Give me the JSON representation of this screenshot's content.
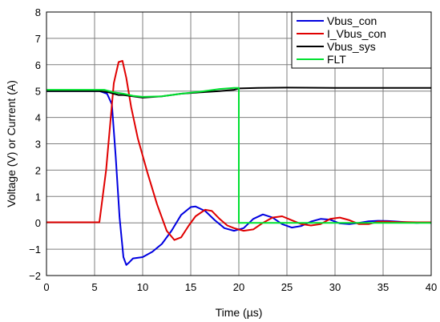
{
  "chart_data": {
    "type": "line",
    "xlabel": "Time (µs)",
    "ylabel": "Voltage (V) or Current (A)",
    "xlim": [
      0,
      40
    ],
    "ylim": [
      -2,
      8
    ],
    "xticks": [
      0,
      5,
      10,
      15,
      20,
      25,
      30,
      35,
      40
    ],
    "yticks": [
      -2,
      -1,
      0,
      1,
      2,
      3,
      4,
      5,
      6,
      7,
      8
    ],
    "xtick_labels": [
      "0",
      "5",
      "10",
      "15",
      "20",
      "25",
      "30",
      "35",
      "40"
    ],
    "ytick_labels": [
      "−2",
      "−1",
      "0",
      "1",
      "2",
      "3",
      "4",
      "5",
      "6",
      "7",
      "8"
    ],
    "grid": true,
    "legend_position": "top-right",
    "series": [
      {
        "name": "Vbus_con",
        "color": "#0000e0",
        "x": [
          0,
          5.5,
          6.3,
          6.8,
          7.2,
          7.6,
          8.0,
          8.3,
          8.6,
          9.0,
          10.0,
          11.0,
          12.0,
          13.0,
          14.0,
          15.0,
          15.5,
          16.5,
          17.5,
          18.5,
          19.5,
          20.5,
          21.5,
          22.5,
          23.5,
          24.5,
          25.5,
          26.5,
          27.5,
          28.5,
          29.5,
          30.5,
          31.5,
          32.5,
          33.5,
          34.5,
          35.5,
          36.5,
          37.5,
          38.5,
          39.5,
          40
        ],
        "y": [
          5.0,
          5.0,
          4.9,
          4.5,
          2.5,
          0.2,
          -1.3,
          -1.6,
          -1.5,
          -1.35,
          -1.3,
          -1.1,
          -0.8,
          -0.3,
          0.3,
          0.6,
          0.62,
          0.45,
          0.1,
          -0.2,
          -0.3,
          -0.2,
          0.15,
          0.32,
          0.2,
          -0.05,
          -0.18,
          -0.12,
          0.05,
          0.15,
          0.12,
          -0.02,
          -0.05,
          0.0,
          0.06,
          0.08,
          0.07,
          0.05,
          0.02,
          0.0,
          0.02,
          0.0
        ]
      },
      {
        "name": "I_Vbus_con",
        "color": "#e00000",
        "x": [
          0,
          5.5,
          6.2,
          7.0,
          7.5,
          7.9,
          8.3,
          8.8,
          9.5,
          10.5,
          11.5,
          12.5,
          13.3,
          14.0,
          14.8,
          15.5,
          16.5,
          17.2,
          18.0,
          18.8,
          19.5,
          20.5,
          21.5,
          22.5,
          23.5,
          24.5,
          25.5,
          26.5,
          27.5,
          28.5,
          29.5,
          30.5,
          31.5,
          32.5,
          33.5,
          34.5,
          35.5,
          36.5,
          37.5,
          38.5,
          40
        ],
        "y": [
          0.02,
          0.02,
          2.0,
          5.3,
          6.1,
          6.15,
          5.5,
          4.4,
          3.2,
          1.9,
          0.7,
          -0.3,
          -0.65,
          -0.55,
          -0.1,
          0.25,
          0.5,
          0.45,
          0.15,
          -0.1,
          -0.2,
          -0.3,
          -0.25,
          0.0,
          0.2,
          0.25,
          0.1,
          -0.05,
          -0.1,
          -0.05,
          0.15,
          0.2,
          0.1,
          -0.05,
          -0.05,
          0.05,
          0.05,
          0.03,
          0.03,
          0.02,
          0.02
        ]
      },
      {
        "name": "Vbus_sys",
        "color": "#000000",
        "x": [
          0,
          5.5,
          6.5,
          7.0,
          7.5,
          8.0,
          9.0,
          10.0,
          12.0,
          14.0,
          16.0,
          18.0,
          19.5,
          20.0,
          22.0,
          25.0,
          30.0,
          35.0,
          40.0
        ],
        "y": [
          5.0,
          5.0,
          4.95,
          4.9,
          4.85,
          4.85,
          4.8,
          4.75,
          4.8,
          4.9,
          4.95,
          5.0,
          5.05,
          5.1,
          5.12,
          5.13,
          5.12,
          5.12,
          5.12
        ]
      },
      {
        "name": "FLT",
        "color": "#00e030",
        "x": [
          0,
          6.0,
          7.0,
          8.0,
          9.0,
          10.0,
          12.0,
          14.0,
          16.0,
          18.0,
          19.5,
          20.0,
          20.0,
          25.0,
          30.0,
          35.0,
          40.0
        ],
        "y": [
          5.05,
          5.05,
          4.95,
          4.9,
          4.82,
          4.78,
          4.8,
          4.9,
          4.98,
          5.08,
          5.12,
          5.12,
          0.0,
          0.0,
          0.0,
          0.0,
          0.0
        ]
      }
    ]
  }
}
